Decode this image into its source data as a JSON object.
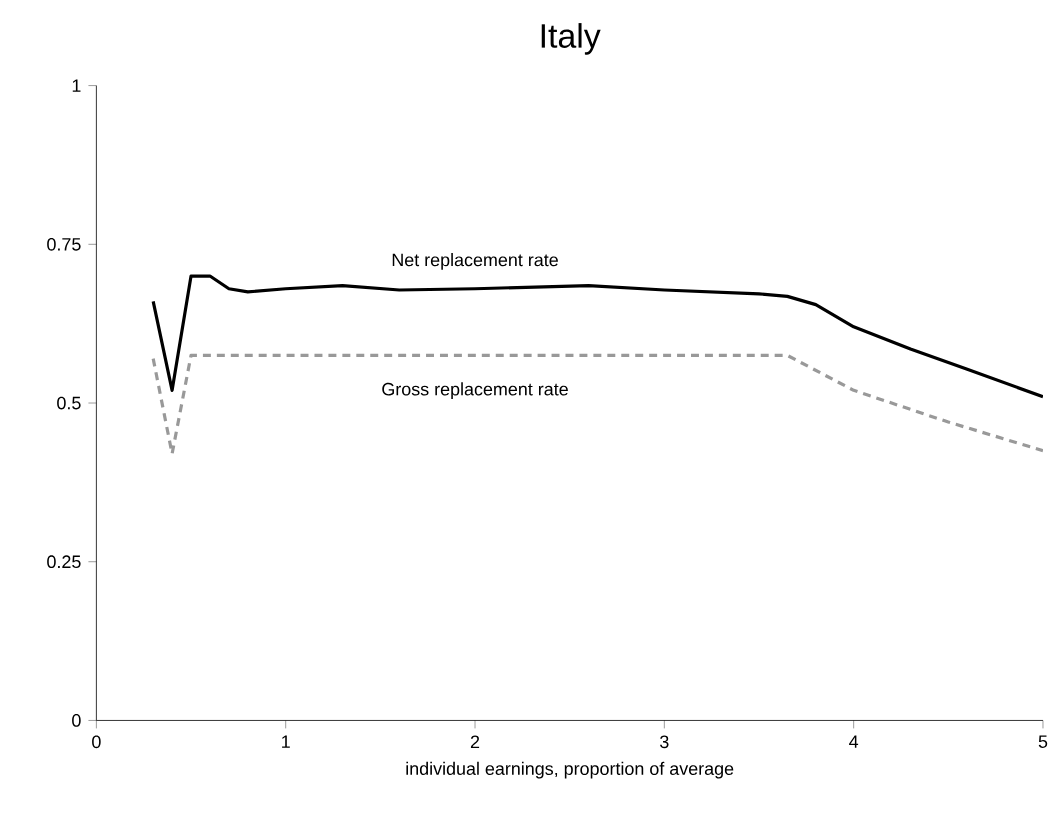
{
  "chart_data": {
    "type": "line",
    "title": "Italy",
    "xlabel": "individual earnings, proportion of average",
    "xlim": [
      0,
      5
    ],
    "xticks": [
      0,
      1,
      2,
      3,
      4,
      5
    ],
    "ylim": [
      0,
      1
    ],
    "yticks": [
      0,
      0.25,
      0.5,
      0.75,
      1
    ],
    "grid": false,
    "series": [
      {
        "name": "Net replacement rate",
        "color": "#000000",
        "line_style": "solid",
        "x": [
          0.3,
          0.4,
          0.5,
          0.6,
          0.7,
          0.8,
          1.0,
          1.3,
          1.6,
          2.0,
          2.6,
          3.0,
          3.5,
          3.65,
          3.8,
          4.0,
          4.3,
          4.6,
          5.0
        ],
        "values": [
          0.66,
          0.52,
          0.7,
          0.7,
          0.68,
          0.675,
          0.68,
          0.685,
          0.678,
          0.68,
          0.685,
          0.678,
          0.672,
          0.668,
          0.655,
          0.62,
          0.585,
          0.553,
          0.51
        ]
      },
      {
        "name": "Gross replacement rate",
        "color": "#999999",
        "line_style": "dashed",
        "x": [
          0.3,
          0.4,
          0.5,
          0.6,
          1.0,
          2.0,
          3.0,
          3.65,
          4.0,
          4.5,
          5.0
        ],
        "values": [
          0.57,
          0.42,
          0.575,
          0.575,
          0.575,
          0.575,
          0.575,
          0.575,
          0.52,
          0.47,
          0.425
        ]
      }
    ]
  }
}
